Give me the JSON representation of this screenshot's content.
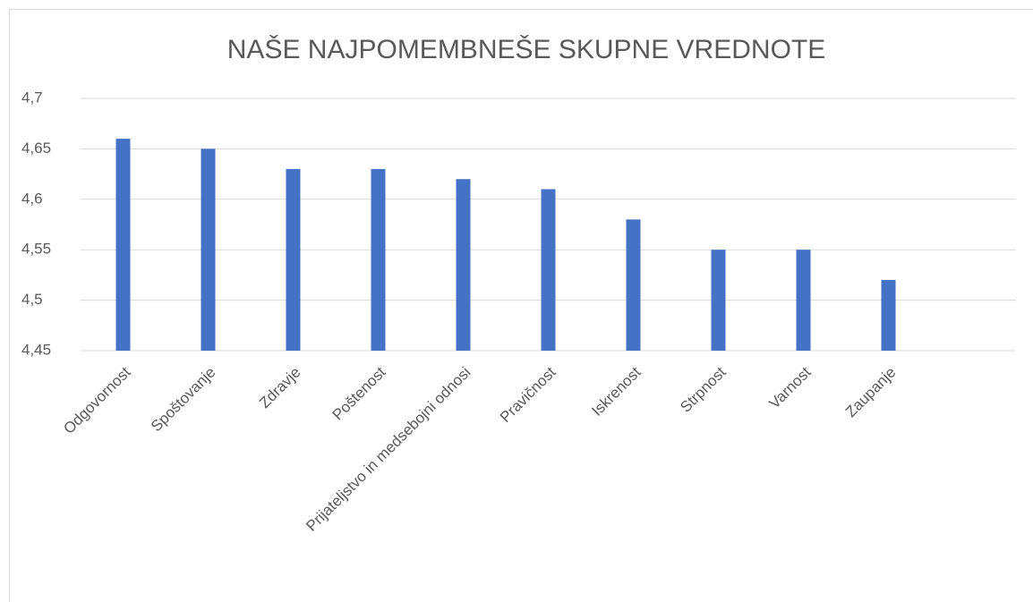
{
  "chart_data": {
    "type": "bar",
    "title": "NAŠE NAJPOMEMBNEŠE SKUPNE VREDNOTE",
    "categories": [
      "Odgovornost",
      "Spoštovanje",
      "Zdravje",
      "Poštenost",
      "Prijateljstvo in medsebojni odnosi",
      "Pravičnost",
      "Iskrenost",
      "Strpnost",
      "Varnost",
      "Zaupanje",
      null
    ],
    "values": [
      4.66,
      4.65,
      4.63,
      4.63,
      4.62,
      4.61,
      4.58,
      4.55,
      4.55,
      4.52,
      null
    ],
    "color": "#4472c4",
    "ylim": [
      4.45,
      4.7
    ],
    "yticks": [
      {
        "value": 4.45,
        "label": "4,45"
      },
      {
        "value": 4.5,
        "label": "4,5"
      },
      {
        "value": 4.55,
        "label": "4,55"
      },
      {
        "value": 4.6,
        "label": "4,6"
      },
      {
        "value": 4.65,
        "label": "4,65"
      },
      {
        "value": 4.7,
        "label": "4,7"
      }
    ],
    "grid": true
  }
}
